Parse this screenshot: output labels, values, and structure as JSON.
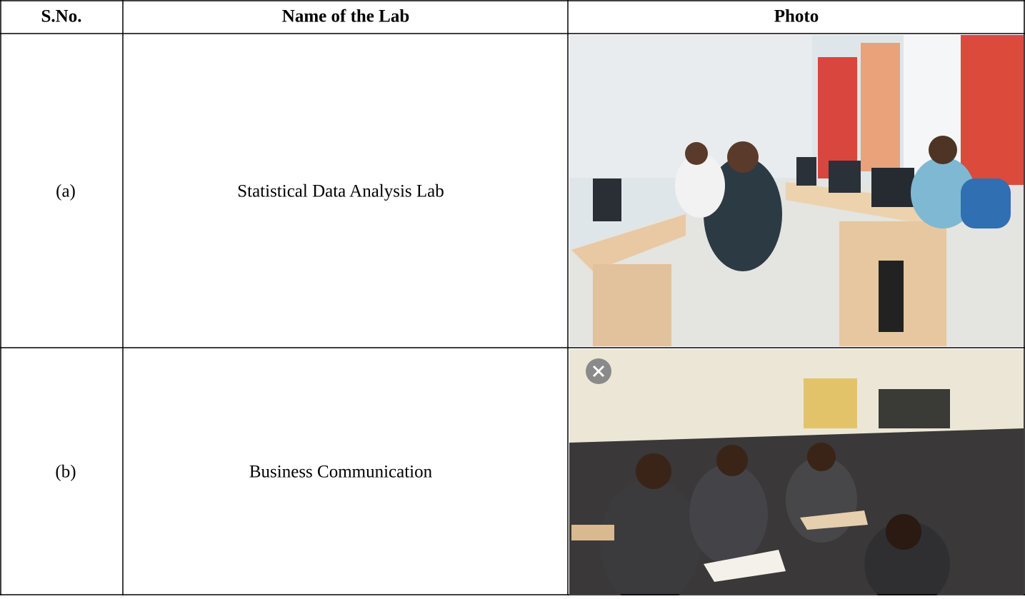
{
  "table": {
    "header": [
      "S.No.",
      "Name of the Lab",
      "Photo"
    ],
    "rows": [
      [
        "(a)",
        "Statistical Data Analysis Lab"
      ],
      [
        "(b)",
        "Business Communication"
      ]
    ]
  }
}
